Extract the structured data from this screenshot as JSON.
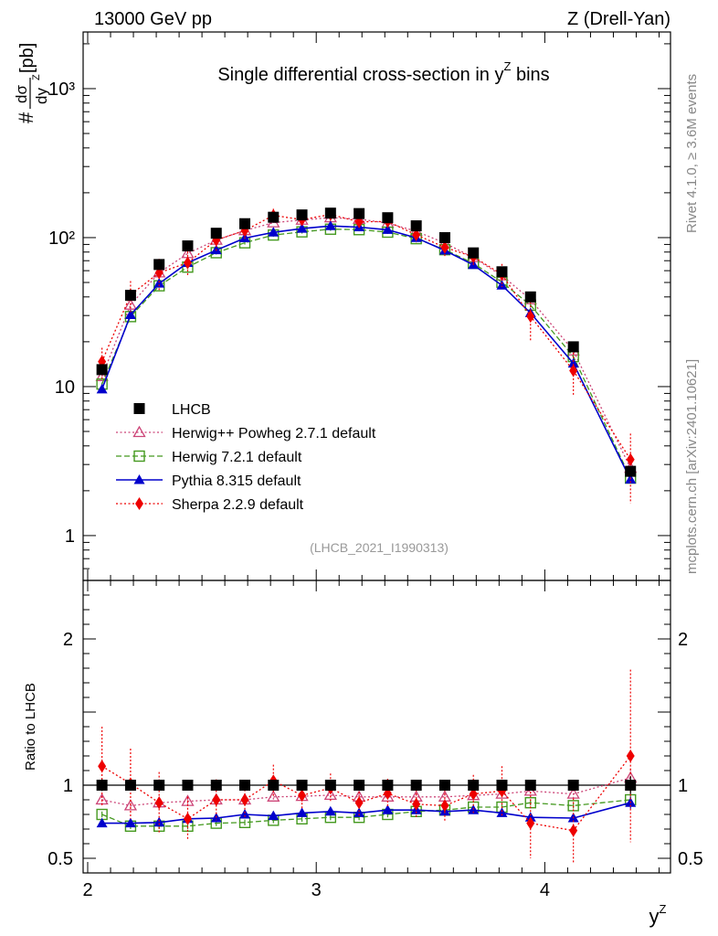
{
  "header": {
    "left": "13000 GeV pp",
    "right": "Z (Drell-Yan)",
    "side_rivet": "Rivet 4.1.0, ≥ 3.6M events",
    "side_mcplots": "mcplots.cern.ch [arXiv:2401.10621]"
  },
  "chart_data": {
    "type": "line",
    "title": "Single differential cross-section in y bins",
    "title_main": "Single differential cross-section in ",
    "title_var": "y",
    "title_sup": "Z",
    "title_tail": " bins",
    "analysis_id": "(LHCB_2021_I1990313)",
    "ylabel_prefix": "#",
    "ylabel_num": "dσ",
    "ylabel_den": "dy",
    "ylabel_den_sup": "Z",
    "ylabel_unit": "[pb]",
    "ratio_ylabel": "Ratio to LHCB",
    "xlabel": "y",
    "xlabel_sup": "Z",
    "xlim": [
      1.98,
      4.55
    ],
    "ylim": [
      0.5,
      2400
    ],
    "yscale": "log",
    "ratio_ylim": [
      0.4,
      2.4
    ],
    "x_ticks": [
      "2",
      "3",
      "4"
    ],
    "main_y_ticks": [
      "1",
      "10",
      "10²",
      "10³"
    ],
    "ratio_y_ticks": [
      "0.5",
      "1",
      "2"
    ],
    "x": [
      2.0625,
      2.1875,
      2.3125,
      2.4375,
      2.5625,
      2.6875,
      2.8125,
      2.9375,
      3.0625,
      3.1875,
      3.3125,
      3.4375,
      3.5625,
      3.6875,
      3.8125,
      3.9375,
      4.125,
      4.375
    ],
    "series": [
      {
        "name": "LHCB",
        "style": "data",
        "color": "#000000",
        "marker": "square-filled",
        "values": [
          13,
          41,
          66,
          88,
          107,
          124,
          137,
          142,
          146,
          145,
          136,
          120,
          100,
          79,
          59,
          40,
          18.5,
          2.7
        ],
        "ratio": [
          1,
          1,
          1,
          1,
          1,
          1,
          1,
          1,
          1,
          1,
          1,
          1,
          1,
          1,
          1,
          1,
          1,
          1
        ],
        "ratio_err": [
          0.04,
          0.02,
          0.02,
          0.02,
          0.02,
          0.02,
          0.02,
          0.02,
          0.02,
          0.02,
          0.02,
          0.02,
          0.02,
          0.02,
          0.02,
          0.03,
          0.03,
          0.06
        ]
      },
      {
        "name": "Herwig++ Powheg 2.7.1 default",
        "style": "dotted",
        "color": "#cc4477",
        "marker": "triangle-open",
        "values": [
          11.7,
          35.3,
          58.1,
          78.3,
          96.3,
          111.6,
          126,
          131.2,
          136.1,
          133.2,
          125.1,
          110.4,
          92.0,
          73.5,
          55.5,
          38.4,
          17.4,
          2.84
        ],
        "ratio": [
          0.9,
          0.86,
          0.88,
          0.89,
          0.9,
          0.9,
          0.92,
          0.924,
          0.932,
          0.92,
          0.92,
          0.92,
          0.92,
          0.93,
          0.94,
          0.96,
          0.94,
          1.05
        ],
        "ratio_err": [
          0.03,
          0.02,
          0.02,
          0.02,
          0.02,
          0.02,
          0.02,
          0.02,
          0.02,
          0.02,
          0.02,
          0.02,
          0.02,
          0.02,
          0.02,
          0.02,
          0.03,
          0.06
        ]
      },
      {
        "name": "Herwig 7.2.1 default",
        "style": "dashed",
        "color": "#44991f",
        "marker": "square-open",
        "values": [
          10.4,
          29.5,
          47.5,
          63.4,
          79.2,
          92.3,
          104.1,
          109.3,
          113.9,
          113.1,
          108.8,
          98.4,
          83.0,
          67.2,
          50.2,
          35.2,
          15.9,
          2.43
        ],
        "ratio": [
          0.8,
          0.72,
          0.72,
          0.72,
          0.74,
          0.745,
          0.76,
          0.77,
          0.78,
          0.78,
          0.8,
          0.82,
          0.83,
          0.85,
          0.85,
          0.88,
          0.86,
          0.9
        ],
        "ratio_err": [
          0.02,
          0.02,
          0.02,
          0.02,
          0.02,
          0.02,
          0.02,
          0.02,
          0.02,
          0.02,
          0.02,
          0.02,
          0.02,
          0.02,
          0.02,
          0.02,
          0.02,
          0.03
        ]
      },
      {
        "name": "Pythia 8.315 default",
        "style": "solid",
        "color": "#0000cc",
        "marker": "triangle-filled",
        "values": [
          9.6,
          30.3,
          49.2,
          67.8,
          82.4,
          99.2,
          108.4,
          115.0,
          119.7,
          117.5,
          112.9,
          99.6,
          82.0,
          65.6,
          47.8,
          31.2,
          14.3,
          2.38
        ],
        "ratio": [
          0.74,
          0.74,
          0.745,
          0.77,
          0.775,
          0.8,
          0.79,
          0.81,
          0.82,
          0.81,
          0.83,
          0.83,
          0.82,
          0.83,
          0.81,
          0.78,
          0.775,
          0.88
        ],
        "ratio_err": [
          0.02,
          0.01,
          0.01,
          0.01,
          0.01,
          0.01,
          0.01,
          0.01,
          0.01,
          0.01,
          0.01,
          0.01,
          0.01,
          0.01,
          0.01,
          0.02,
          0.02,
          0.04
        ]
      },
      {
        "name": "Sherpa 2.2.9 default",
        "style": "dotted",
        "color": "#ee0000",
        "marker": "diamond-filled",
        "values": [
          14.7,
          41.3,
          58.1,
          67.8,
          96.3,
          111.6,
          141.1,
          132.1,
          143.1,
          127.6,
          128.4,
          104.4,
          86.0,
          74.3,
          56.6,
          29.6,
          12.8,
          3.24
        ],
        "ratio": [
          1.13,
          1.01,
          0.88,
          0.77,
          0.9,
          0.9,
          1.03,
          0.93,
          0.98,
          0.88,
          0.944,
          0.87,
          0.86,
          0.94,
          0.96,
          0.74,
          0.69,
          1.2
        ],
        "ratio_err": [
          0.27,
          0.24,
          0.21,
          0.15,
          0.14,
          0.12,
          0.11,
          0.1,
          0.1,
          0.1,
          0.1,
          0.1,
          0.11,
          0.13,
          0.17,
          0.24,
          0.22,
          0.59
        ]
      }
    ]
  }
}
